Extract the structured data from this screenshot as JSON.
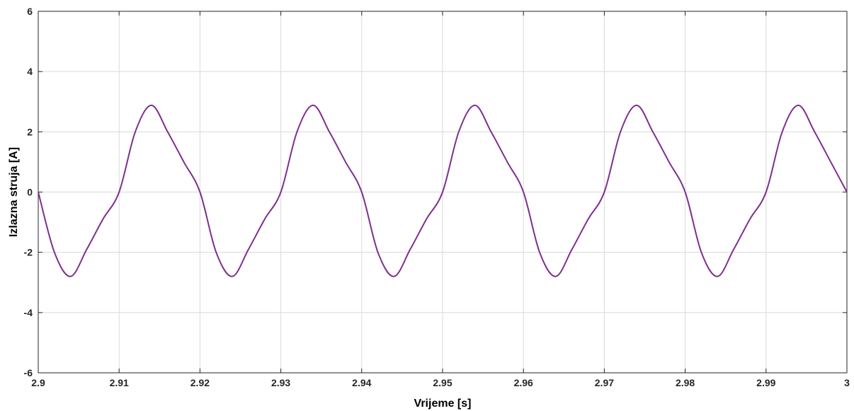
{
  "chart_data": {
    "type": "line",
    "title": "",
    "xlabel": "Vrijeme [s]",
    "ylabel": "Izlazna struja [A]",
    "xlim": [
      2.9,
      3.0
    ],
    "ylim": [
      -6,
      6
    ],
    "grid": true,
    "x_ticks": [
      "2.9",
      "2.91",
      "2.92",
      "2.93",
      "2.94",
      "2.95",
      "2.96",
      "2.97",
      "2.98",
      "2.99",
      "3"
    ],
    "y_ticks": [
      "-6",
      "-4",
      "-2",
      "0",
      "2",
      "4",
      "6"
    ],
    "series": [
      {
        "color": "#7E2F8E",
        "x": [
          2.9,
          2.902,
          2.904,
          2.906,
          2.908,
          2.91,
          2.912,
          2.914,
          2.916,
          2.918,
          2.92,
          2.922,
          2.924,
          2.926,
          2.928,
          2.93,
          2.932,
          2.934,
          2.936,
          2.938,
          2.94,
          2.942,
          2.944,
          2.946,
          2.948,
          2.95,
          2.952,
          2.954,
          2.956,
          2.958,
          2.96,
          2.962,
          2.964,
          2.966,
          2.968,
          2.97,
          2.972,
          2.974,
          2.976,
          2.978,
          2.98,
          2.982,
          2.984,
          2.986,
          2.988,
          2.99,
          2.992,
          2.994,
          2.996,
          2.998,
          3.0
        ],
        "y": [
          0,
          -2.0,
          -2.8,
          -1.9,
          -0.9,
          0,
          2.0,
          2.88,
          2.0,
          1.0,
          0,
          -2.0,
          -2.8,
          -1.9,
          -0.9,
          0,
          2.0,
          2.88,
          2.0,
          1.0,
          0,
          -2.0,
          -2.8,
          -1.9,
          -0.9,
          0,
          2.0,
          2.88,
          2.0,
          1.0,
          0,
          -2.0,
          -2.8,
          -1.9,
          -0.9,
          0,
          2.0,
          2.88,
          2.0,
          1.0,
          0,
          -2.0,
          -2.8,
          -1.9,
          -0.9,
          0,
          2.0,
          2.88,
          2.0,
          1.0,
          0
        ]
      }
    ]
  }
}
